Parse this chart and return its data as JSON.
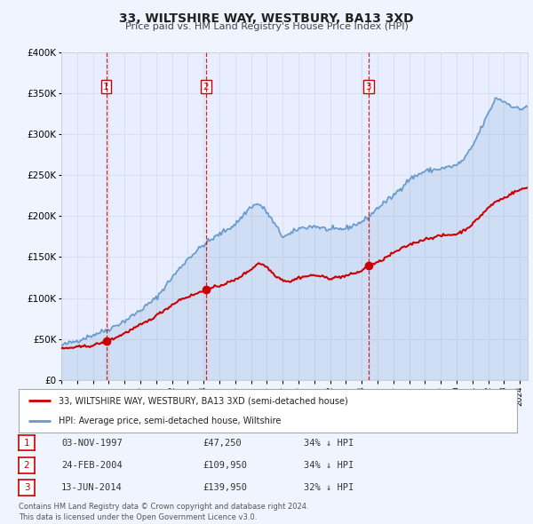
{
  "title": "33, WILTSHIRE WAY, WESTBURY, BA13 3XD",
  "subtitle": "Price paid vs. HM Land Registry's House Price Index (HPI)",
  "background_color": "#f0f4ff",
  "plot_bg_color": "#e8eeff",
  "grid_color": "#d8dff0",
  "transactions": [
    {
      "date": 1997.84,
      "price": 47250,
      "label": "1"
    },
    {
      "date": 2004.15,
      "price": 109950,
      "label": "2"
    },
    {
      "date": 2014.44,
      "price": 139950,
      "label": "3"
    }
  ],
  "transaction_dates_display": [
    "03-NOV-1997",
    "24-FEB-2004",
    "13-JUN-2014"
  ],
  "transaction_prices_display": [
    "£47,250",
    "£109,950",
    "£139,950"
  ],
  "transaction_hpi_pct": [
    "34% ↓ HPI",
    "34% ↓ HPI",
    "32% ↓ HPI"
  ],
  "red_line_color": "#cc0000",
  "blue_line_color": "#6699cc",
  "vline_color": "#cc0000",
  "marker_color": "#cc0000",
  "ylim": [
    0,
    400000
  ],
  "xlim": [
    1995.0,
    2024.5
  ],
  "ylabel_ticks": [
    0,
    50000,
    100000,
    150000,
    200000,
    250000,
    300000,
    350000,
    400000
  ],
  "ylabel_labels": [
    "£0",
    "£50K",
    "£100K",
    "£150K",
    "£200K",
    "£250K",
    "£300K",
    "£350K",
    "£400K"
  ],
  "xtick_years": [
    1995,
    1996,
    1997,
    1998,
    1999,
    2000,
    2001,
    2002,
    2003,
    2004,
    2005,
    2006,
    2007,
    2008,
    2009,
    2010,
    2011,
    2012,
    2013,
    2014,
    2015,
    2016,
    2017,
    2018,
    2019,
    2020,
    2021,
    2022,
    2023,
    2024
  ],
  "legend_label_red": "33, WILTSHIRE WAY, WESTBURY, BA13 3XD (semi-detached house)",
  "legend_label_blue": "HPI: Average price, semi-detached house, Wiltshire",
  "footer_text": "Contains HM Land Registry data © Crown copyright and database right 2024.\nThis data is licensed under the Open Government Licence v3.0."
}
